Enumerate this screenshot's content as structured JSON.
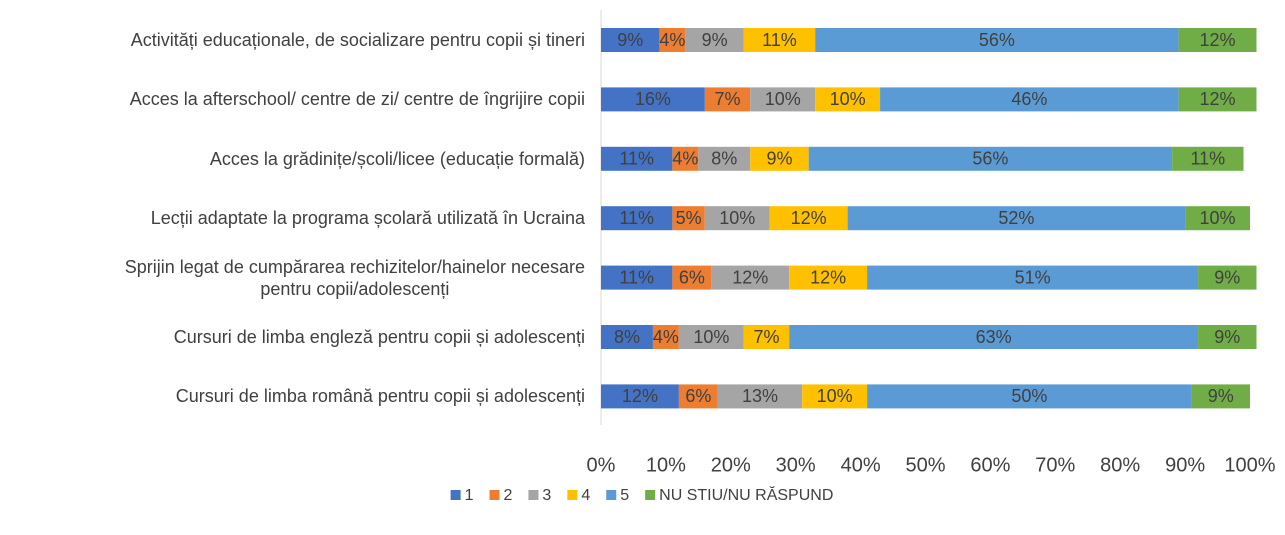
{
  "chart_data": {
    "type": "stacked-bar-horizontal",
    "categories": [
      "Activități educaționale, de socializare pentru copii și tineri",
      "Acces la afterschool/ centre de zi/ centre de îngrijire copii",
      "Acces la grădinițe/școli/licee (educație formală)",
      "Lecții adaptate la programa școlară utilizată în Ucraina",
      "Sprijin legat de cumpărarea rechizitelor/hainelor necesare\npentru copii/adolescenți",
      "Cursuri de limba engleză pentru copii și adolescenți",
      "Cursuri de limba română pentru copii și adolescenți"
    ],
    "series": [
      {
        "name": "1",
        "color": "#4472c4",
        "values": [
          9,
          16,
          11,
          11,
          11,
          8,
          12
        ],
        "value_labels": [
          "9%",
          "16%",
          "11%",
          "11%",
          "11%",
          "8%",
          "12%"
        ]
      },
      {
        "name": "2",
        "color": "#ed7d31",
        "values": [
          4,
          7,
          4,
          5,
          6,
          4,
          6
        ],
        "value_labels": [
          "4%",
          "7%",
          "4%",
          "5%",
          "6%",
          "4%",
          "6%"
        ]
      },
      {
        "name": "3",
        "color": "#a5a5a5",
        "values": [
          9,
          10,
          8,
          10,
          12,
          10,
          13
        ],
        "value_labels": [
          "9%",
          "10%",
          "8%",
          "10%",
          "12%",
          "10%",
          "13%"
        ]
      },
      {
        "name": "4",
        "color": "#ffc000",
        "values": [
          11,
          10,
          9,
          12,
          12,
          7,
          10
        ],
        "value_labels": [
          "11%",
          "10%",
          "9%",
          "12%",
          "12%",
          "7%",
          "10%"
        ]
      },
      {
        "name": "5",
        "color": "#5b9bd5",
        "values": [
          56,
          46,
          56,
          52,
          51,
          63,
          50
        ],
        "value_labels": [
          "56%",
          "46%",
          "56%",
          "52%",
          "51%",
          "63%",
          "50%"
        ]
      },
      {
        "name": "NU STIU/NU RĂSPUND",
        "color": "#70ad47",
        "values": [
          12,
          12,
          11,
          10,
          9,
          9,
          9
        ],
        "value_labels": [
          "12%",
          "12%",
          "11%",
          "10%",
          "9%",
          "9%",
          "9%"
        ]
      }
    ],
    "xlim": [
      0,
      100
    ],
    "xticks": [
      {
        "value": 0,
        "label": "0%"
      },
      {
        "value": 10,
        "label": "10%"
      },
      {
        "value": 20,
        "label": "20%"
      },
      {
        "value": 30,
        "label": "30%"
      },
      {
        "value": 40,
        "label": "40%"
      },
      {
        "value": 50,
        "label": "50%"
      },
      {
        "value": 60,
        "label": "60%"
      },
      {
        "value": 70,
        "label": "70%"
      },
      {
        "value": 80,
        "label": "80%"
      },
      {
        "value": 90,
        "label": "90%"
      },
      {
        "value": 100,
        "label": "100%"
      }
    ],
    "grid": false,
    "legend": "bottom"
  }
}
